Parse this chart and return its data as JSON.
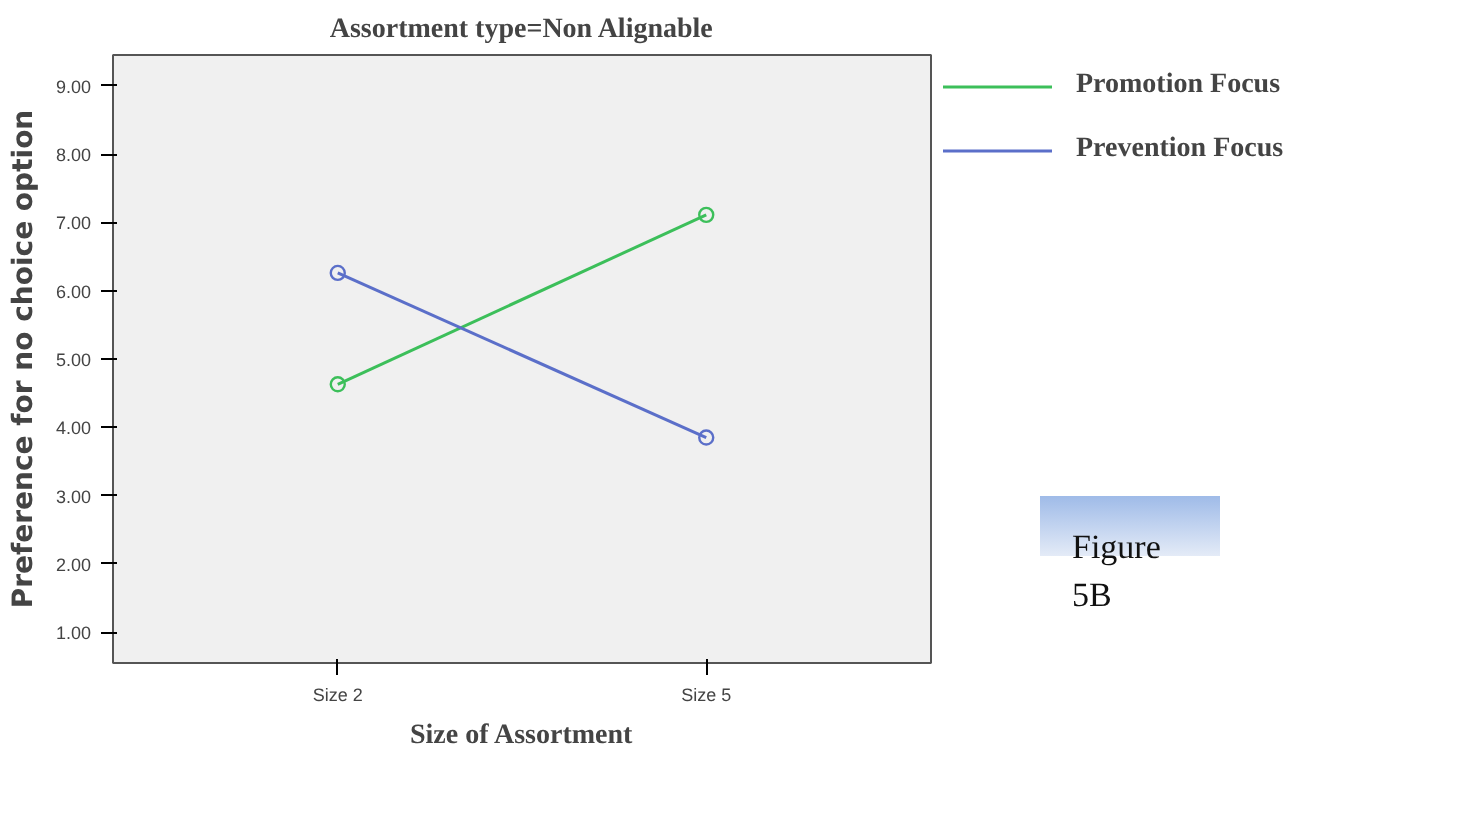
{
  "chart_data": {
    "type": "line",
    "title": "Assortment type=Non Alignable",
    "xlabel": "Size of Assortment",
    "ylabel": "Preference for no choice option",
    "categories": [
      "Size 2",
      "Size 5"
    ],
    "series": [
      {
        "name": "Promotion Focus",
        "color": "#3cbf5a",
        "values": [
          4.63,
          7.11
        ]
      },
      {
        "name": "Prevention Focus",
        "color": "#5b6fc9",
        "values": [
          6.26,
          3.85
        ]
      }
    ],
    "ylim": [
      0.55,
      9.45
    ],
    "yticks": [
      {
        "value": 1,
        "label": "1.00"
      },
      {
        "value": 2,
        "label": "2.00"
      },
      {
        "value": 3,
        "label": "3.00"
      },
      {
        "value": 4,
        "label": "4.00"
      },
      {
        "value": 5,
        "label": "5.00"
      },
      {
        "value": 6,
        "label": "6.00"
      },
      {
        "value": 7,
        "label": "7.00"
      },
      {
        "value": 8,
        "label": "8.00"
      },
      {
        "value": 9,
        "label": "9.00"
      }
    ],
    "grid": false,
    "legend": "right",
    "marker": "circle",
    "line_style": "solid",
    "annotations": [
      "Figure 5B"
    ]
  }
}
